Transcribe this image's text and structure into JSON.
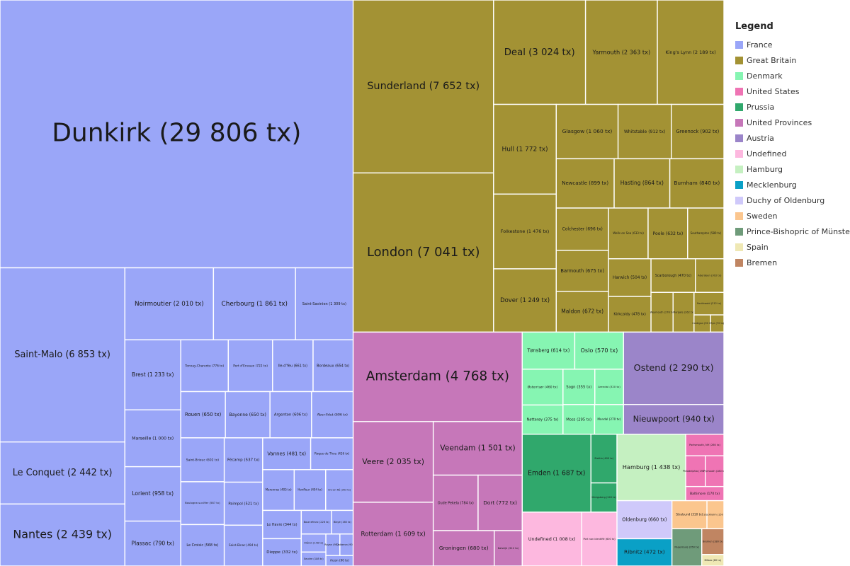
{
  "chart_data": {
    "type": "treemap",
    "legend": {
      "title": "Legend",
      "items": [
        {
          "name": "France",
          "color": "#9aa6f8"
        },
        {
          "name": "Great Britain",
          "color": "#a39234"
        },
        {
          "name": "Denmark",
          "color": "#86f5b2"
        },
        {
          "name": "United States",
          "color": "#ef74b4"
        },
        {
          "name": "Prussia",
          "color": "#30a86c"
        },
        {
          "name": "United Provinces",
          "color": "#c677b9"
        },
        {
          "name": "Austria",
          "color": "#9b85c9"
        },
        {
          "name": "Undefined",
          "color": "#fdb8df"
        },
        {
          "name": "Hamburg",
          "color": "#c5f0c1"
        },
        {
          "name": "Mecklenburg",
          "color": "#0aa0c6"
        },
        {
          "name": "Duchy of Oldenburg",
          "color": "#cfc9fa"
        },
        {
          "name": "Sweden",
          "color": "#fbc68e"
        },
        {
          "name": "Prince-Bishopric of Münster",
          "color": "#6f9b7a"
        },
        {
          "name": "Spain",
          "color": "#efe8b4"
        },
        {
          "name": "Bremen",
          "color": "#c08562"
        }
      ]
    },
    "ports": [
      {
        "group": "France",
        "label": "Dunkirk (29 806 tx)",
        "value": 29806
      },
      {
        "group": "France",
        "label": "Saint-Malo (6 853 tx)",
        "value": 6853
      },
      {
        "group": "France",
        "label": "Cherbourg (1 861 tx)",
        "value": 1861
      },
      {
        "group": "France",
        "label": "Le Croisic (568 tx)",
        "value": 568
      },
      {
        "group": "France",
        "label": "Honfleur (404 tx)",
        "value": 404
      },
      {
        "group": "France",
        "label": "Brest (1 233 tx)",
        "value": 1233
      },
      {
        "group": "France",
        "label": "Le Conquet (2 442 tx)",
        "value": 2442
      },
      {
        "group": "France",
        "label": "Nantes (2 439 tx)",
        "value": 2439
      },
      {
        "group": "France",
        "label": "Noirmoutier (2 010 tx)",
        "value": 2010
      },
      {
        "group": "France",
        "label": "Saint-Savinien (1 309 tx)",
        "value": 1309
      },
      {
        "group": "France",
        "label": "Marseille (1 000 tx)",
        "value": 1000
      },
      {
        "group": "France",
        "label": "Lorient (958 tx)",
        "value": 958
      },
      {
        "group": "France",
        "label": "Plassac (790 tx)",
        "value": 790
      },
      {
        "group": "France",
        "label": "Tonnay-Charente (776 tx)",
        "value": 776
      },
      {
        "group": "France",
        "label": "Ile-d'Yeu (661 tx)",
        "value": 661
      },
      {
        "group": "France",
        "label": "Bordeaux (654 tx)",
        "value": 654
      },
      {
        "group": "France",
        "label": "Rouen (650 tx)",
        "value": 650
      },
      {
        "group": "France",
        "label": "Bayonne (650 tx)",
        "value": 650
      },
      {
        "group": "France",
        "label": "Argenton (606 tx)",
        "value": 606
      },
      {
        "group": "France",
        "label": "Saint-Brieuc (602 tx)",
        "value": 602
      },
      {
        "group": "France",
        "label": "Aber-Ildut (606 tx)",
        "value": 606
      },
      {
        "group": "France",
        "label": "Boulogne-sur-Mer (587 tx)",
        "value": 587
      },
      {
        "group": "France",
        "label": "Fécamp (537 tx)",
        "value": 537
      },
      {
        "group": "France",
        "label": "Paimpol (521 tx)",
        "value": 521
      },
      {
        "group": "France",
        "label": "Saint-Binac (494 tx)",
        "value": 494
      },
      {
        "group": "France",
        "label": "Vannes (481 tx)",
        "value": 481
      },
      {
        "group": "France",
        "label": "Roque de Thou (426 tx)",
        "value": 426
      },
      {
        "group": "France",
        "label": "Marennes (405 tx)",
        "value": 405
      },
      {
        "group": "France",
        "label": "Ars-en-Ré (353 tx)",
        "value": 353
      },
      {
        "group": "France",
        "label": "Dieppe (332 tx)",
        "value": 332
      },
      {
        "group": "France",
        "label": "Bourcefranc (226 tx)",
        "value": 226
      },
      {
        "group": "France",
        "label": "Port d'Envaux (722 tx)",
        "value": 722
      },
      {
        "group": "France",
        "label": "Le Havre (344 tx)",
        "value": 344
      },
      {
        "group": "France",
        "label": "Oléron (140 tx)",
        "value": 140
      },
      {
        "group": "France",
        "label": "Blaye (160 tx)",
        "value": 160
      },
      {
        "group": "France",
        "label": "Seudre (108 tx)",
        "value": 108
      },
      {
        "group": "France",
        "label": "Royan (95 tx)",
        "value": 95
      },
      {
        "group": "France",
        "label": "Quiberon (90 tx)",
        "value": 90
      },
      {
        "group": "France",
        "label": "Arzon (90 tx)",
        "value": 90
      },
      {
        "group": "Great Britain",
        "label": "Sunderland (7 652 tx)",
        "value": 7652
      },
      {
        "group": "Great Britain",
        "label": "London (7 041 tx)",
        "value": 7041
      },
      {
        "group": "Great Britain",
        "label": "Deal (3 024 tx)",
        "value": 3024
      },
      {
        "group": "Great Britain",
        "label": "Yarmouth (2 363 tx)",
        "value": 2363
      },
      {
        "group": "Great Britain",
        "label": "King's Lynn (2 189 tx)",
        "value": 2189
      },
      {
        "group": "Great Britain",
        "label": "Hull (1 772 tx)",
        "value": 1772
      },
      {
        "group": "Great Britain",
        "label": "Folkestone (1 476 tx)",
        "value": 1476
      },
      {
        "group": "Great Britain",
        "label": "Dover (1 249 tx)",
        "value": 1249
      },
      {
        "group": "Great Britain",
        "label": "Glasgow (1 060 tx)",
        "value": 1060
      },
      {
        "group": "Great Britain",
        "label": "Whitstable (912 tx)",
        "value": 912
      },
      {
        "group": "Great Britain",
        "label": "Greenock (902 tx)",
        "value": 902
      },
      {
        "group": "Great Britain",
        "label": "Newcastle (899 tx)",
        "value": 899
      },
      {
        "group": "Great Britain",
        "label": "Hasting (864 tx)",
        "value": 864
      },
      {
        "group": "Great Britain",
        "label": "Burnham (840 tx)",
        "value": 840
      },
      {
        "group": "Great Britain",
        "label": "Colchester (696 tx)",
        "value": 696
      },
      {
        "group": "Great Britain",
        "label": "Barmouth (675 tx)",
        "value": 675
      },
      {
        "group": "Great Britain",
        "label": "Maldon (672 tx)",
        "value": 672
      },
      {
        "group": "Great Britain",
        "label": "Poole (632 tx)",
        "value": 632
      },
      {
        "group": "Great Britain",
        "label": "Wells on Sea (633 tx)",
        "value": 633
      },
      {
        "group": "Great Britain",
        "label": "Southampton (580 tx)",
        "value": 580
      },
      {
        "group": "Great Britain",
        "label": "Harwich (504 tx)",
        "value": 504
      },
      {
        "group": "Great Britain",
        "label": "Scarborough (470 tx)",
        "value": 470
      },
      {
        "group": "Great Britain",
        "label": "Kirkcaldy (478 tx)",
        "value": 478
      },
      {
        "group": "Great Britain",
        "label": "Aberdeen (302 tx)",
        "value": 302
      },
      {
        "group": "Great Britain",
        "label": "Margate (262 tx)",
        "value": 262
      },
      {
        "group": "Great Britain",
        "label": "Weymouth (276 tx)",
        "value": 276
      },
      {
        "group": "Great Britain",
        "label": "Southwold (212 tx)",
        "value": 212
      },
      {
        "group": "Great Britain",
        "label": "Rye (72 tx)",
        "value": 72
      },
      {
        "group": "Great Britain",
        "label": "Cardigan (90 tx)",
        "value": 90
      },
      {
        "group": "Denmark",
        "label": "Tønsberg (614 tx)",
        "value": 614
      },
      {
        "group": "Denmark",
        "label": "Oslo (570 tx)",
        "value": 570
      },
      {
        "group": "Denmark",
        "label": "Østerrisør (460 tx)",
        "value": 460
      },
      {
        "group": "Denmark",
        "label": "Sogn (355 tx)",
        "value": 355
      },
      {
        "group": "Denmark",
        "label": "Mandal (270 tx)",
        "value": 270
      },
      {
        "group": "Denmark",
        "label": "Moss (295 tx)",
        "value": 295
      },
      {
        "group": "Denmark",
        "label": "Nøtterøy (375 tx)",
        "value": 375
      },
      {
        "group": "Denmark",
        "label": "Arendal (320 tx)",
        "value": 320
      },
      {
        "group": "United States",
        "label": "Philadelphia (190 tx)",
        "value": 190
      },
      {
        "group": "United States",
        "label": "Portsmouth, NH (260 tx)",
        "value": 260
      },
      {
        "group": "United States",
        "label": "Plymouth (180 tx)",
        "value": 180
      },
      {
        "group": "United States",
        "label": "Baltimore (170 tx)",
        "value": 170
      },
      {
        "group": "Prussia",
        "label": "Emden (1 687 tx)",
        "value": 1687
      },
      {
        "group": "Prussia",
        "label": "Stettin (400 tx)",
        "value": 400
      },
      {
        "group": "Prussia",
        "label": "Königsberg (240 tx)",
        "value": 240
      },
      {
        "group": "United Provinces",
        "label": "Amsterdam (4 768 tx)",
        "value": 4768
      },
      {
        "group": "United Provinces",
        "label": "Veere (2 035 tx)",
        "value": 2035
      },
      {
        "group": "United Provinces",
        "label": "Rotterdam (1 609 tx)",
        "value": 1609
      },
      {
        "group": "United Provinces",
        "label": "Veendam (1 501 tx)",
        "value": 1501
      },
      {
        "group": "United Provinces",
        "label": "Dort (772 tx)",
        "value": 772
      },
      {
        "group": "United Provinces",
        "label": "Groningen (680 tx)",
        "value": 680
      },
      {
        "group": "United Provinces",
        "label": "Oude Pekela (784 tx)",
        "value": 784
      },
      {
        "group": "United Provinces",
        "label": "Katwijk (312 tx)",
        "value": 312
      },
      {
        "group": "Austria",
        "label": "Ostend (2 290 tx)",
        "value": 2290
      },
      {
        "group": "Austria",
        "label": "Nieuwpoort (940 tx)",
        "value": 940
      },
      {
        "group": "Undefined",
        "label": "Undefined (1 008 tx)",
        "value": 1008
      },
      {
        "group": "Undefined",
        "label": "Port non identifié (600 tx)",
        "value": 600
      },
      {
        "group": "Hamburg",
        "label": "Hamburg (1 438 tx)",
        "value": 1438
      },
      {
        "group": "Mecklenburg",
        "label": "Ribnitz (472 tx)",
        "value": 472
      },
      {
        "group": "Duchy of Oldenburg",
        "label": "Oldenburg (660 tx)",
        "value": 660
      },
      {
        "group": "Sweden",
        "label": "Stralsund (310 tx)",
        "value": 310
      },
      {
        "group": "Sweden",
        "label": "Stockholm (150 tx)",
        "value": 150
      },
      {
        "group": "Prince-Bishopric of Münster",
        "label": "Papenburg (350 tx)",
        "value": 350
      },
      {
        "group": "Spain",
        "label": "Bilbao (80 tx)",
        "value": 80
      },
      {
        "group": "Bremen",
        "label": "Bremen (180 tx)",
        "value": 180
      }
    ]
  }
}
